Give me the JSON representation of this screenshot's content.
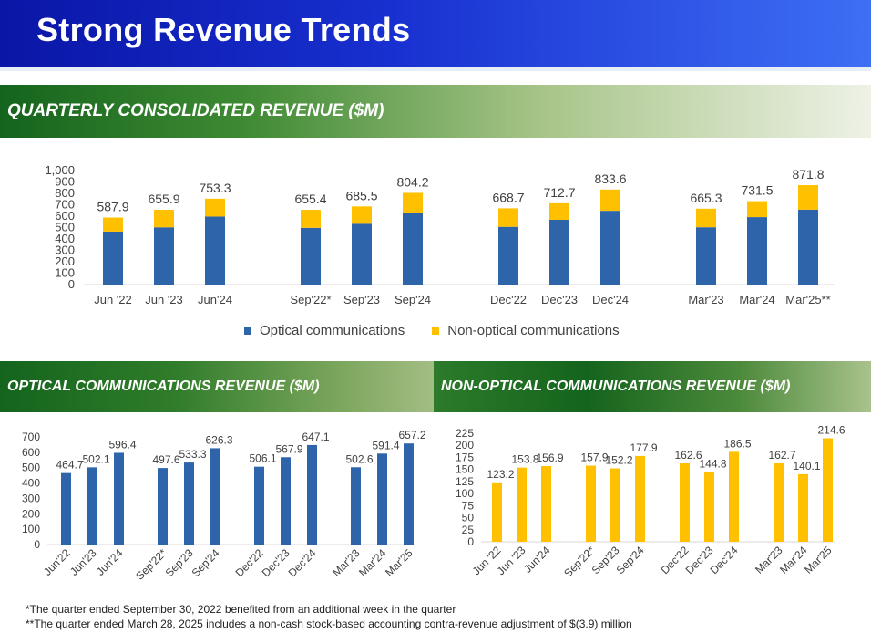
{
  "slide_title": "Strong Revenue Trends",
  "sections": {
    "top": "QUARTERLY CONSOLIDATED REVENUE ($M)",
    "left": "OPTICAL COMMUNICATIONS REVENUE ($M)",
    "right": "NON-OPTICAL COMMUNICATIONS REVENUE ($M)"
  },
  "legend": {
    "optical": "Optical communications",
    "non_optical": "Non-optical communications"
  },
  "footnotes": [
    "*The quarter ended September 30, 2022 benefited from an additional week in the quarter",
    "**The quarter ended March 28, 2025 includes a non-cash stock-based accounting contra-revenue  adjustment of $(3.9) million"
  ],
  "colors": {
    "optical": "#2e64aa",
    "non_optical": "#ffc000"
  },
  "chart_data": [
    {
      "id": "consolidated",
      "type": "bar",
      "stacked": true,
      "title": "QUARTERLY CONSOLIDATED REVENUE ($M)",
      "categories": [
        "Jun '22",
        "Jun '23",
        "Jun'24",
        "Sep'22*",
        "Sep'23",
        "Sep'24",
        "Dec'22",
        "Dec'23",
        "Dec'24",
        "Mar'23",
        "Mar'24",
        "Mar'25**"
      ],
      "groups": [
        3,
        3,
        3,
        3
      ],
      "series": [
        {
          "name": "Optical communications",
          "values": [
            464.7,
            502.1,
            596.4,
            497.6,
            533.3,
            626.3,
            506.1,
            567.9,
            647.1,
            502.6,
            591.4,
            657.2
          ]
        },
        {
          "name": "Non-optical communications",
          "values": [
            123.2,
            153.8,
            156.9,
            157.9,
            152.2,
            177.9,
            162.6,
            144.8,
            186.5,
            162.7,
            140.1,
            214.6
          ]
        }
      ],
      "totals": [
        "587.9",
        "655.9",
        "753.3",
        "655.4",
        "685.5",
        "804.2",
        "668.7",
        "712.7",
        "833.6",
        "665.3",
        "731.5",
        "871.8"
      ],
      "yticks": [
        "1,000",
        "900",
        "800",
        "700",
        "600",
        "500",
        "400",
        "300",
        "200",
        "100",
        "0"
      ],
      "ylim": [
        0,
        1000
      ],
      "legend": "bottom"
    },
    {
      "id": "optical",
      "type": "bar",
      "title": "OPTICAL COMMUNICATIONS REVENUE ($M)",
      "categories": [
        "Jun'22",
        "Jun'23",
        "Jun'24",
        "Sep'22*",
        "Sep'23",
        "Sep'24",
        "Dec'22",
        "Dec'23",
        "Dec'24",
        "Mar'23",
        "Mar'24",
        "Mar'25"
      ],
      "groups": [
        3,
        3,
        3,
        3
      ],
      "values": [
        464.7,
        502.1,
        596.4,
        497.6,
        533.3,
        626.3,
        506.1,
        567.9,
        647.1,
        502.6,
        591.4,
        657.2
      ],
      "labels": [
        "464.7",
        "502.1",
        "596.4",
        "497.6",
        "533.3",
        "626.3",
        "506.1",
        "567.9",
        "647.1",
        "502.6",
        "591.4",
        "657.2"
      ],
      "yticks": [
        "700",
        "600",
        "500",
        "400",
        "300",
        "200",
        "100",
        "0"
      ],
      "ylim": [
        0,
        700
      ]
    },
    {
      "id": "non_optical",
      "type": "bar",
      "title": "NON-OPTICAL COMMUNICATIONS REVENUE ($M)",
      "categories": [
        "Jun '22",
        "Jun '23",
        "Jun'24",
        "Sep'22*",
        "Sep'23",
        "Sep'24",
        "Dec'22",
        "Dec'23",
        "Dec'24",
        "Mar'23",
        "Mar'24",
        "Mar'25"
      ],
      "groups": [
        3,
        3,
        3,
        3
      ],
      "values": [
        123.2,
        153.8,
        156.9,
        157.9,
        152.2,
        177.9,
        162.6,
        144.8,
        186.5,
        162.7,
        140.1,
        214.6
      ],
      "labels": [
        "123.2",
        "153.8",
        "156.9",
        "157.9",
        "152.2",
        "177.9",
        "162.6",
        "144.8",
        "186.5",
        "162.7",
        "140.1",
        "214.6"
      ],
      "yticks": [
        "225",
        "200",
        "175",
        "150",
        "125",
        "100",
        "75",
        "50",
        "25",
        "0"
      ],
      "ylim": [
        0,
        225
      ]
    }
  ]
}
